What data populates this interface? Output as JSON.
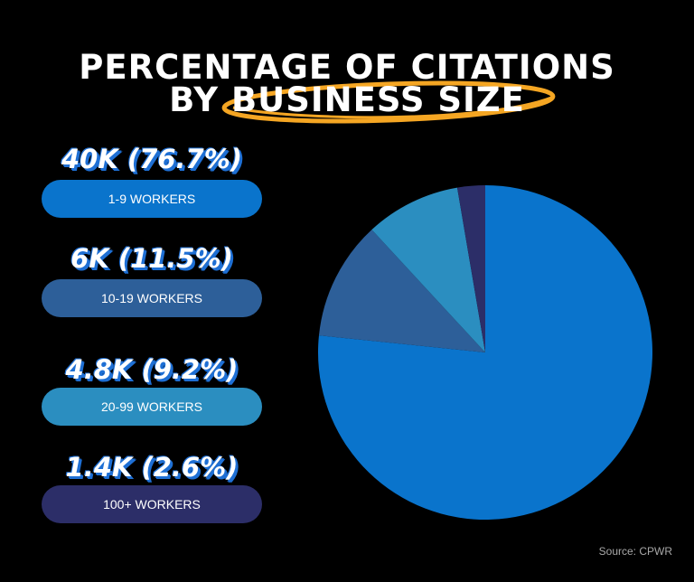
{
  "title": {
    "line1": "PERCENTAGE OF CITATIONS",
    "line2_prefix": "BY ",
    "line2_highlight": "BUSINESS SIZE"
  },
  "colors": {
    "background": "#000000",
    "highlight_ring": "#f5a623",
    "label_shadow": "#1e6fd4"
  },
  "chart_data": {
    "type": "pie",
    "title": "PERCENTAGE OF CITATIONS BY BUSINESS SIZE",
    "categories": [
      "1-9 WORKERS",
      "10-19 WORKERS",
      "20-99 WORKERS",
      "100+ WORKERS"
    ],
    "values": [
      40,
      6,
      4.8,
      1.4
    ],
    "percentages": [
      76.7,
      11.5,
      9.2,
      2.6
    ],
    "value_labels": [
      "40K (76.7%)",
      "6K (11.5%)",
      "4.8K (9.2%)",
      "1.4K (2.6%)"
    ],
    "colors": [
      "#0a74cc",
      "#2d5f99",
      "#2b8ec0",
      "#2c2e68"
    ],
    "legend_position": "left",
    "unit": "K"
  },
  "source": "Source: CPWR"
}
